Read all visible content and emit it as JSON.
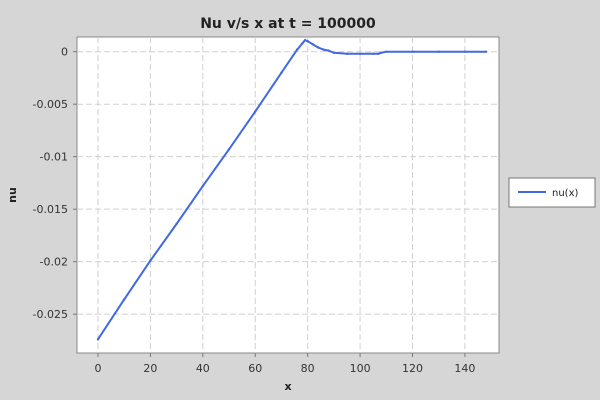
{
  "chart_data": {
    "type": "line",
    "title": "Nu v/s x at t = 100000",
    "xlabel": "x",
    "ylabel": "nu",
    "xlim": [
      -8,
      153
    ],
    "ylim": [
      -0.0287,
      0.0014
    ],
    "x_ticks": [
      0,
      20,
      40,
      60,
      80,
      100,
      120,
      140
    ],
    "y_ticks": [
      0,
      -0.005,
      -0.01,
      -0.015,
      -0.02,
      -0.025
    ],
    "x_tick_labels": [
      "0",
      "20",
      "40",
      "60",
      "80",
      "100",
      "120",
      "140"
    ],
    "y_tick_labels": [
      "0",
      "-0.005",
      "-0.01",
      "-0.015",
      "-0.02",
      "-0.025"
    ],
    "grid": true,
    "legend_position": "right",
    "series": [
      {
        "name": "nu(x)",
        "color": "#4169e1",
        "x": [
          0,
          10,
          20,
          30,
          40,
          50,
          60,
          70,
          76,
          78,
          79,
          80,
          82,
          84,
          86,
          88,
          90,
          95,
          100,
          105,
          107,
          108,
          110,
          120,
          130,
          140,
          148
        ],
        "y": [
          -0.0274,
          -0.0236,
          -0.0199,
          -0.0164,
          -0.0128,
          -0.0093,
          -0.0057,
          -0.002,
          0.0002,
          0.0008,
          0.0011,
          0.001,
          0.0007,
          0.0004,
          0.0002,
          0.0001,
          -0.0001,
          -0.0002,
          -0.0002,
          -0.0002,
          -0.0002,
          -0.0001,
          0.0,
          0.0,
          0.0,
          0.0,
          0.0
        ]
      }
    ]
  }
}
